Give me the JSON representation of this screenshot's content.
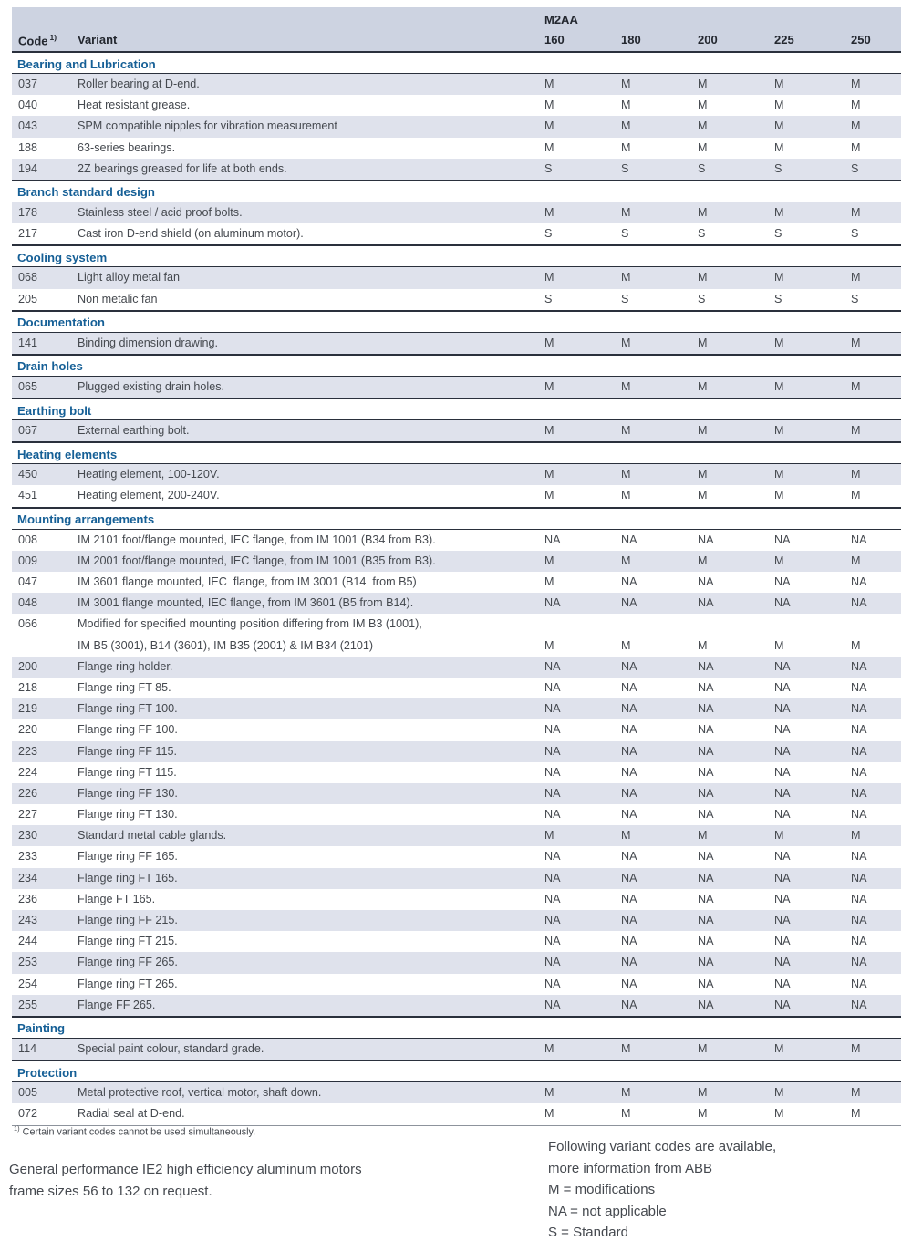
{
  "header": {
    "group_label": "M2AA",
    "code_label": "Code",
    "code_footnote_ref": "1)",
    "variant_label": "Variant",
    "sizes": [
      "160",
      "180",
      "200",
      "225",
      "250"
    ]
  },
  "sections": [
    {
      "title": "Bearing and Lubrication",
      "first_shaded": true,
      "rows": [
        {
          "code": "037",
          "variant": "Roller bearing at D-end.",
          "values": [
            "M",
            "M",
            "M",
            "M",
            "M"
          ]
        },
        {
          "code": "040",
          "variant": "Heat resistant grease.",
          "values": [
            "M",
            "M",
            "M",
            "M",
            "M"
          ]
        },
        {
          "code": "043",
          "variant": "SPM compatible nipples for vibration measurement",
          "values": [
            "M",
            "M",
            "M",
            "M",
            "M"
          ]
        },
        {
          "code": "188",
          "variant": "63-series bearings.",
          "values": [
            "M",
            "M",
            "M",
            "M",
            "M"
          ]
        },
        {
          "code": "194",
          "variant": "2Z bearings greased for life at both ends.",
          "values": [
            "S",
            "S",
            "S",
            "S",
            "S"
          ]
        }
      ]
    },
    {
      "title": "Branch standard design",
      "first_shaded": true,
      "rows": [
        {
          "code": "178",
          "variant": "Stainless steel / acid proof bolts.",
          "values": [
            "M",
            "M",
            "M",
            "M",
            "M"
          ]
        },
        {
          "code": "217",
          "variant": "Cast iron D-end shield (on aluminum motor).",
          "values": [
            "S",
            "S",
            "S",
            "S",
            "S"
          ]
        }
      ]
    },
    {
      "title": "Cooling system",
      "first_shaded": true,
      "rows": [
        {
          "code": "068",
          "variant": "Light alloy metal fan",
          "values": [
            "M",
            "M",
            "M",
            "M",
            "M"
          ]
        },
        {
          "code": "205",
          "variant": "Non metalic fan",
          "values": [
            "S",
            "S",
            "S",
            "S",
            "S"
          ]
        }
      ]
    },
    {
      "title": "Documentation",
      "first_shaded": true,
      "rows": [
        {
          "code": "141",
          "variant": "Binding dimension drawing.",
          "values": [
            "M",
            "M",
            "M",
            "M",
            "M"
          ]
        }
      ]
    },
    {
      "title": "Drain holes",
      "first_shaded": true,
      "rows": [
        {
          "code": "065",
          "variant": "Plugged existing drain holes.",
          "values": [
            "M",
            "M",
            "M",
            "M",
            "M"
          ]
        }
      ]
    },
    {
      "title": "Earthing bolt",
      "first_shaded": true,
      "rows": [
        {
          "code": "067",
          "variant": "External earthing bolt.",
          "values": [
            "M",
            "M",
            "M",
            "M",
            "M"
          ]
        }
      ]
    },
    {
      "title": "Heating elements",
      "first_shaded": true,
      "rows": [
        {
          "code": "450",
          "variant": "Heating element, 100-120V.",
          "values": [
            "M",
            "M",
            "M",
            "M",
            "M"
          ]
        },
        {
          "code": "451",
          "variant": "Heating element, 200-240V.",
          "values": [
            "M",
            "M",
            "M",
            "M",
            "M"
          ]
        }
      ]
    },
    {
      "title": "Mounting arrangements",
      "first_shaded": false,
      "rows": [
        {
          "code": "008",
          "variant": "IM 2101 foot/flange mounted, IEC flange, from IM 1001 (B34 from B3).",
          "values": [
            "NA",
            "NA",
            "NA",
            "NA",
            "NA"
          ]
        },
        {
          "code": "009",
          "variant": "IM 2001 foot/flange mounted, IEC flange, from IM 1001 (B35 from B3).",
          "values": [
            "M",
            "M",
            "M",
            "M",
            "M"
          ]
        },
        {
          "code": "047",
          "variant": "IM 3601 flange mounted, IEC  flange, from IM 3001 (B14  from B5)",
          "values": [
            "M",
            "NA",
            "NA",
            "NA",
            "NA"
          ]
        },
        {
          "code": "048",
          "variant": "IM 3001 flange mounted, IEC flange, from IM 3601 (B5 from B14).",
          "values": [
            "NA",
            "NA",
            "NA",
            "NA",
            "NA"
          ]
        },
        {
          "code": "066",
          "variant": "Modified for specified mounting position differing from IM B3 (1001),",
          "variant2": "IM B5 (3001), B14 (3601), IM B35 (2001) & IM B34 (2101)",
          "values": [
            "M",
            "M",
            "M",
            "M",
            "M"
          ]
        },
        {
          "code": "200",
          "variant": "Flange ring holder.",
          "values": [
            "NA",
            "NA",
            "NA",
            "NA",
            "NA"
          ]
        },
        {
          "code": "218",
          "variant": "Flange ring FT 85.",
          "values": [
            "NA",
            "NA",
            "NA",
            "NA",
            "NA"
          ]
        },
        {
          "code": "219",
          "variant": "Flange ring FT 100.",
          "values": [
            "NA",
            "NA",
            "NA",
            "NA",
            "NA"
          ]
        },
        {
          "code": "220",
          "variant": "Flange ring FF 100.",
          "values": [
            "NA",
            "NA",
            "NA",
            "NA",
            "NA"
          ]
        },
        {
          "code": "223",
          "variant": "Flange ring FF 115.",
          "values": [
            "NA",
            "NA",
            "NA",
            "NA",
            "NA"
          ]
        },
        {
          "code": "224",
          "variant": "Flange ring FT 115.",
          "values": [
            "NA",
            "NA",
            "NA",
            "NA",
            "NA"
          ]
        },
        {
          "code": "226",
          "variant": "Flange ring FF 130.",
          "values": [
            "NA",
            "NA",
            "NA",
            "NA",
            "NA"
          ]
        },
        {
          "code": "227",
          "variant": "Flange ring FT 130.",
          "values": [
            "NA",
            "NA",
            "NA",
            "NA",
            "NA"
          ]
        },
        {
          "code": "230",
          "variant": "Standard metal cable glands.",
          "values": [
            "M",
            "M",
            "M",
            "M",
            "M"
          ]
        },
        {
          "code": "233",
          "variant": "Flange ring FF 165.",
          "values": [
            "NA",
            "NA",
            "NA",
            "NA",
            "NA"
          ]
        },
        {
          "code": "234",
          "variant": "Flange ring FT 165.",
          "values": [
            "NA",
            "NA",
            "NA",
            "NA",
            "NA"
          ]
        },
        {
          "code": "236",
          "variant": "Flange FT 165.",
          "values": [
            "NA",
            "NA",
            "NA",
            "NA",
            "NA"
          ]
        },
        {
          "code": "243",
          "variant": "Flange ring FF 215.",
          "values": [
            "NA",
            "NA",
            "NA",
            "NA",
            "NA"
          ]
        },
        {
          "code": "244",
          "variant": "Flange ring FT 215.",
          "values": [
            "NA",
            "NA",
            "NA",
            "NA",
            "NA"
          ]
        },
        {
          "code": "253",
          "variant": "Flange ring FF 265.",
          "values": [
            "NA",
            "NA",
            "NA",
            "NA",
            "NA"
          ]
        },
        {
          "code": "254",
          "variant": "Flange ring FT 265.",
          "values": [
            "NA",
            "NA",
            "NA",
            "NA",
            "NA"
          ]
        },
        {
          "code": "255",
          "variant": "Flange FF 265.",
          "values": [
            "NA",
            "NA",
            "NA",
            "NA",
            "NA"
          ]
        }
      ]
    },
    {
      "title": "Painting",
      "first_shaded": true,
      "rows": [
        {
          "code": "114",
          "variant": "Special paint colour, standard grade.",
          "values": [
            "M",
            "M",
            "M",
            "M",
            "M"
          ]
        }
      ]
    },
    {
      "title": "Protection",
      "first_shaded": true,
      "rows": [
        {
          "code": "005",
          "variant": "Metal protective roof, vertical motor, shaft down.",
          "values": [
            "M",
            "M",
            "M",
            "M",
            "M"
          ]
        },
        {
          "code": "072",
          "variant": "Radial seal at D-end.",
          "values": [
            "M",
            "M",
            "M",
            "M",
            "M"
          ]
        }
      ]
    }
  ],
  "footnote": {
    "ref": "1)",
    "text": "Certain variant codes cannot be used simultaneously."
  },
  "bottom_left": {
    "line1": "General performance IE2 high efficiency aluminum motors",
    "line2": "frame sizes 56 to 132 on request."
  },
  "legend": {
    "lines": [
      "Following variant codes are available,",
      "more information from ABB",
      "M = modifications",
      "NA = not applicable",
      "S = Standard"
    ]
  },
  "colors": {
    "header_band": "#cdd3e1",
    "row_stripe": "#dfe2ec",
    "section_title_blue": "#155f96",
    "rule_dark": "#2a303c",
    "rule_light": "#8d939c",
    "body_text": "#45494f"
  }
}
